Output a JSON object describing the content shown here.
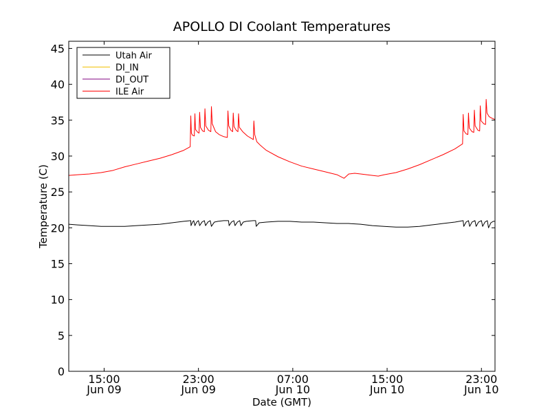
{
  "chart_data": {
    "type": "line",
    "title": "APOLLO DI Coolant Temperatures",
    "xlabel": "Date (GMT)",
    "ylabel": "Temperature (C)",
    "ylim": [
      0,
      46
    ],
    "xlim_hours": [
      11.25,
      47.4
    ],
    "x_unit_note": "hours since 00:00 Jun 09 GMT",
    "yticks": [
      0,
      5,
      10,
      15,
      20,
      25,
      30,
      35,
      40,
      45
    ],
    "xticks": [
      {
        "hour": 14.25,
        "time": "15:00",
        "date": "Jun 09"
      },
      {
        "hour": 22.25,
        "time": "23:00",
        "date": "Jun 09"
      },
      {
        "hour": 30.25,
        "time": "07:00",
        "date": "Jun 10"
      },
      {
        "hour": 38.25,
        "time": "15:00",
        "date": "Jun 10"
      },
      {
        "hour": 46.25,
        "time": "23:00",
        "date": "Jun 10"
      }
    ],
    "legend_position": "top-left",
    "series": [
      {
        "name": "Utah Air",
        "color": "#000000",
        "points": [
          [
            11.25,
            20.5
          ],
          [
            12.0,
            20.4
          ],
          [
            13.0,
            20.3
          ],
          [
            14.0,
            20.2
          ],
          [
            15.0,
            20.2
          ],
          [
            16.0,
            20.2
          ],
          [
            17.0,
            20.3
          ],
          [
            18.0,
            20.4
          ],
          [
            19.0,
            20.5
          ],
          [
            20.0,
            20.7
          ],
          [
            21.0,
            20.9
          ],
          [
            21.6,
            21.0
          ],
          [
            21.62,
            20.3
          ],
          [
            21.75,
            20.8
          ],
          [
            21.85,
            21.0
          ],
          [
            21.95,
            20.3
          ],
          [
            22.1,
            20.8
          ],
          [
            22.25,
            21.0
          ],
          [
            22.35,
            20.3
          ],
          [
            22.55,
            20.8
          ],
          [
            22.75,
            21.0
          ],
          [
            22.85,
            20.3
          ],
          [
            23.05,
            20.8
          ],
          [
            23.25,
            21.0
          ],
          [
            23.35,
            20.2
          ],
          [
            23.6,
            20.8
          ],
          [
            23.9,
            20.9
          ],
          [
            24.4,
            21.0
          ],
          [
            24.8,
            21.0
          ],
          [
            24.85,
            20.3
          ],
          [
            25.05,
            20.8
          ],
          [
            25.25,
            21.0
          ],
          [
            25.35,
            20.3
          ],
          [
            25.55,
            20.8
          ],
          [
            25.75,
            21.0
          ],
          [
            25.85,
            20.3
          ],
          [
            26.05,
            20.8
          ],
          [
            26.3,
            20.9
          ],
          [
            26.9,
            21.0
          ],
          [
            27.1,
            21.0
          ],
          [
            27.15,
            20.2
          ],
          [
            27.4,
            20.7
          ],
          [
            28.0,
            20.8
          ],
          [
            29.0,
            20.9
          ],
          [
            30.0,
            20.9
          ],
          [
            31.0,
            20.8
          ],
          [
            32.0,
            20.8
          ],
          [
            33.0,
            20.7
          ],
          [
            34.0,
            20.6
          ],
          [
            35.0,
            20.6
          ],
          [
            36.0,
            20.5
          ],
          [
            37.0,
            20.3
          ],
          [
            38.0,
            20.2
          ],
          [
            39.0,
            20.1
          ],
          [
            40.0,
            20.1
          ],
          [
            41.0,
            20.2
          ],
          [
            42.0,
            20.4
          ],
          [
            43.0,
            20.6
          ],
          [
            44.0,
            20.8
          ],
          [
            44.7,
            21.0
          ],
          [
            44.75,
            20.2
          ],
          [
            44.95,
            20.8
          ],
          [
            45.15,
            21.0
          ],
          [
            45.25,
            20.2
          ],
          [
            45.45,
            20.8
          ],
          [
            45.7,
            21.0
          ],
          [
            45.8,
            20.2
          ],
          [
            46.0,
            20.8
          ],
          [
            46.25,
            21.0
          ],
          [
            46.35,
            20.2
          ],
          [
            46.55,
            20.8
          ],
          [
            46.75,
            21.0
          ],
          [
            46.85,
            20.0
          ],
          [
            47.05,
            20.7
          ],
          [
            47.25,
            20.9
          ],
          [
            47.4,
            20.9
          ]
        ]
      },
      {
        "name": "DI_IN",
        "color": "#f0c000",
        "points": []
      },
      {
        "name": "DI_OUT",
        "color": "#800080",
        "points": []
      },
      {
        "name": "ILE Air",
        "color": "#ff0000",
        "points": [
          [
            11.25,
            27.3
          ],
          [
            12.0,
            27.4
          ],
          [
            13.0,
            27.5
          ],
          [
            14.0,
            27.7
          ],
          [
            15.0,
            28.0
          ],
          [
            16.0,
            28.5
          ],
          [
            17.0,
            28.9
          ],
          [
            18.0,
            29.3
          ],
          [
            19.0,
            29.7
          ],
          [
            20.0,
            30.2
          ],
          [
            21.0,
            30.8
          ],
          [
            21.55,
            31.3
          ],
          [
            21.6,
            35.6
          ],
          [
            21.65,
            33.2
          ],
          [
            21.75,
            32.9
          ],
          [
            21.9,
            32.8
          ],
          [
            21.95,
            35.9
          ],
          [
            22.0,
            33.7
          ],
          [
            22.2,
            33.3
          ],
          [
            22.3,
            33.2
          ],
          [
            22.35,
            36.1
          ],
          [
            22.42,
            34.0
          ],
          [
            22.6,
            33.5
          ],
          [
            22.75,
            33.4
          ],
          [
            22.8,
            36.6
          ],
          [
            22.87,
            34.2
          ],
          [
            23.1,
            33.6
          ],
          [
            23.3,
            33.4
          ],
          [
            23.35,
            36.9
          ],
          [
            23.42,
            34.5
          ],
          [
            23.7,
            33.4
          ],
          [
            24.0,
            33.0
          ],
          [
            24.4,
            32.7
          ],
          [
            24.7,
            32.6
          ],
          [
            24.75,
            36.3
          ],
          [
            24.82,
            34.2
          ],
          [
            25.0,
            33.6
          ],
          [
            25.15,
            33.4
          ],
          [
            25.2,
            36.0
          ],
          [
            25.27,
            34.1
          ],
          [
            25.45,
            33.6
          ],
          [
            25.6,
            33.4
          ],
          [
            25.65,
            35.9
          ],
          [
            25.72,
            34.0
          ],
          [
            26.0,
            33.4
          ],
          [
            26.4,
            32.8
          ],
          [
            26.9,
            32.3
          ],
          [
            26.95,
            34.9
          ],
          [
            27.02,
            33.0
          ],
          [
            27.2,
            32.0
          ],
          [
            27.5,
            31.5
          ],
          [
            28.0,
            30.8
          ],
          [
            29.0,
            29.9
          ],
          [
            30.0,
            29.2
          ],
          [
            31.0,
            28.6
          ],
          [
            32.0,
            28.2
          ],
          [
            33.0,
            27.8
          ],
          [
            34.0,
            27.4
          ],
          [
            34.6,
            26.9
          ],
          [
            35.0,
            27.5
          ],
          [
            35.5,
            27.6
          ],
          [
            36.0,
            27.5
          ],
          [
            37.0,
            27.3
          ],
          [
            37.5,
            27.2
          ],
          [
            38.0,
            27.4
          ],
          [
            39.0,
            27.7
          ],
          [
            40.0,
            28.2
          ],
          [
            41.0,
            28.8
          ],
          [
            42.0,
            29.5
          ],
          [
            43.0,
            30.2
          ],
          [
            44.0,
            31.0
          ],
          [
            44.65,
            31.7
          ],
          [
            44.7,
            35.8
          ],
          [
            44.77,
            33.5
          ],
          [
            44.95,
            33.1
          ],
          [
            45.1,
            33.0
          ],
          [
            45.15,
            36.0
          ],
          [
            45.22,
            33.9
          ],
          [
            45.45,
            33.4
          ],
          [
            45.6,
            33.3
          ],
          [
            45.65,
            36.4
          ],
          [
            45.72,
            34.2
          ],
          [
            45.95,
            33.6
          ],
          [
            46.1,
            33.5
          ],
          [
            46.15,
            37.0
          ],
          [
            46.22,
            34.9
          ],
          [
            46.45,
            34.5
          ],
          [
            46.6,
            34.4
          ],
          [
            46.65,
            37.9
          ],
          [
            46.72,
            36.0
          ],
          [
            46.9,
            35.5
          ],
          [
            47.1,
            35.3
          ],
          [
            47.25,
            35.2
          ],
          [
            47.4,
            35.1
          ]
        ]
      }
    ]
  }
}
